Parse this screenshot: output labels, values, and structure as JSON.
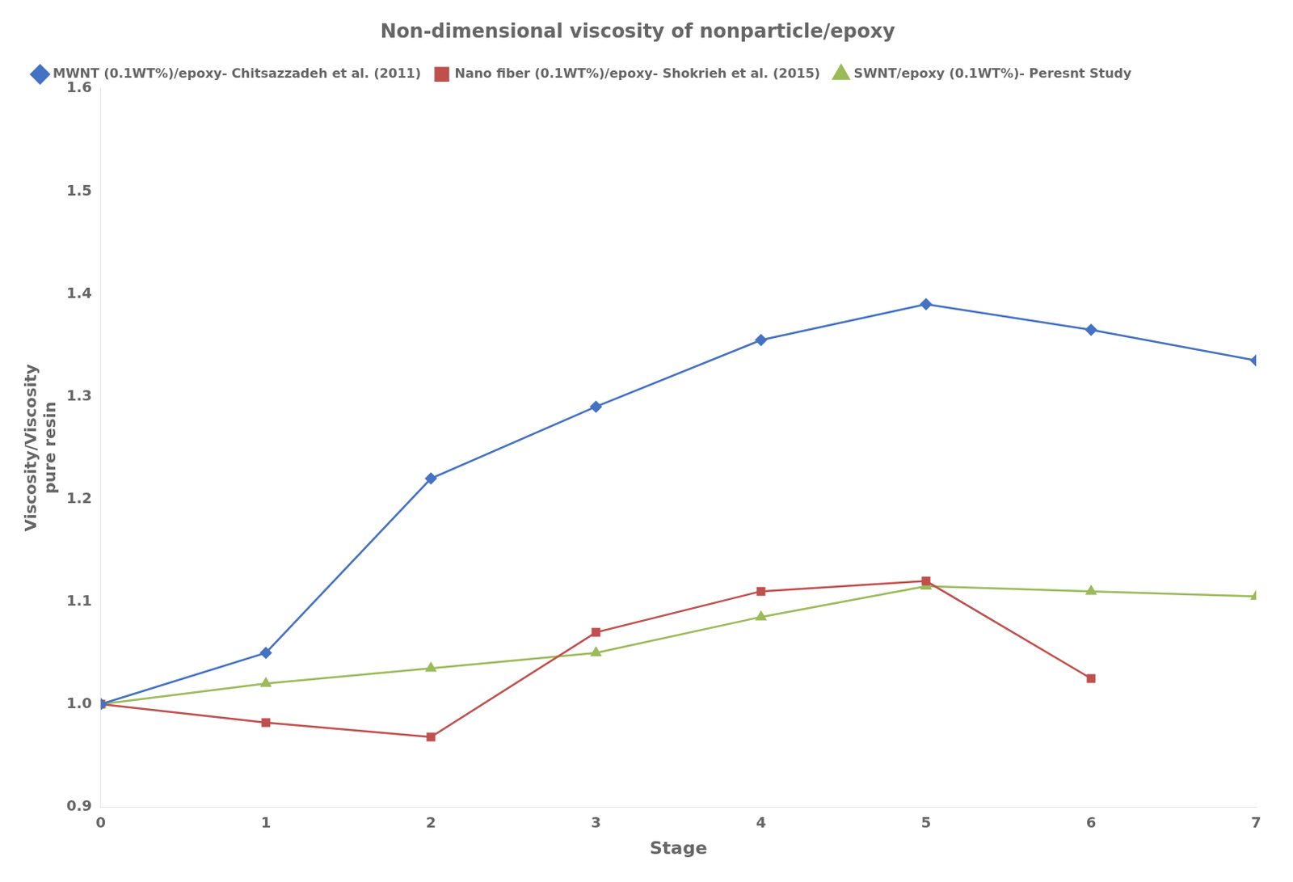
{
  "chart_data": {
    "type": "line",
    "title": "Non-dimensional viscosity of nonparticle/epoxy",
    "xlabel": "Stage",
    "ylabel": "Viscosity/Viscosity",
    "annotations": [
      "pure resin"
    ],
    "xlim": [
      0,
      7
    ],
    "xticks": [
      0,
      1,
      2,
      3,
      4,
      5,
      6,
      7
    ],
    "ylim": [
      0.9,
      1.6
    ],
    "yticks": [
      0.9,
      {
        "value": 1.0,
        "label": "1.0"
      },
      1.1,
      1.2,
      1.3,
      1.4,
      1.5,
      1.6
    ],
    "grid": false,
    "legend": "upper left",
    "series": [
      {
        "name": "MWNT (0.1WT%)/epoxy- Chitsazzadeh et al. (2011)",
        "color": "#4472C4",
        "marker": "diamond",
        "x": [
          0,
          1,
          2,
          3,
          4,
          5,
          6,
          7
        ],
        "values": [
          1.0,
          1.05,
          1.22,
          1.29,
          1.355,
          1.39,
          1.365,
          1.335
        ]
      },
      {
        "name": "Nano fiber (0.1WT%)/epoxy- Shokrieh et al. (2015)",
        "color": "#C0504D",
        "marker": "square",
        "x": [
          0,
          1,
          2,
          3,
          4,
          5,
          6
        ],
        "values": [
          1.0,
          0.982,
          0.968,
          1.07,
          1.11,
          1.12,
          1.025
        ]
      },
      {
        "name": "SWNT/epoxy (0.1WT%)- Peresnt Study",
        "color": "#9BBB59",
        "marker": "triangle",
        "x": [
          0,
          1,
          2,
          3,
          4,
          5,
          6,
          7
        ],
        "values": [
          1.0,
          1.02,
          1.035,
          1.05,
          1.085,
          1.115,
          1.11,
          1.105
        ]
      }
    ]
  }
}
